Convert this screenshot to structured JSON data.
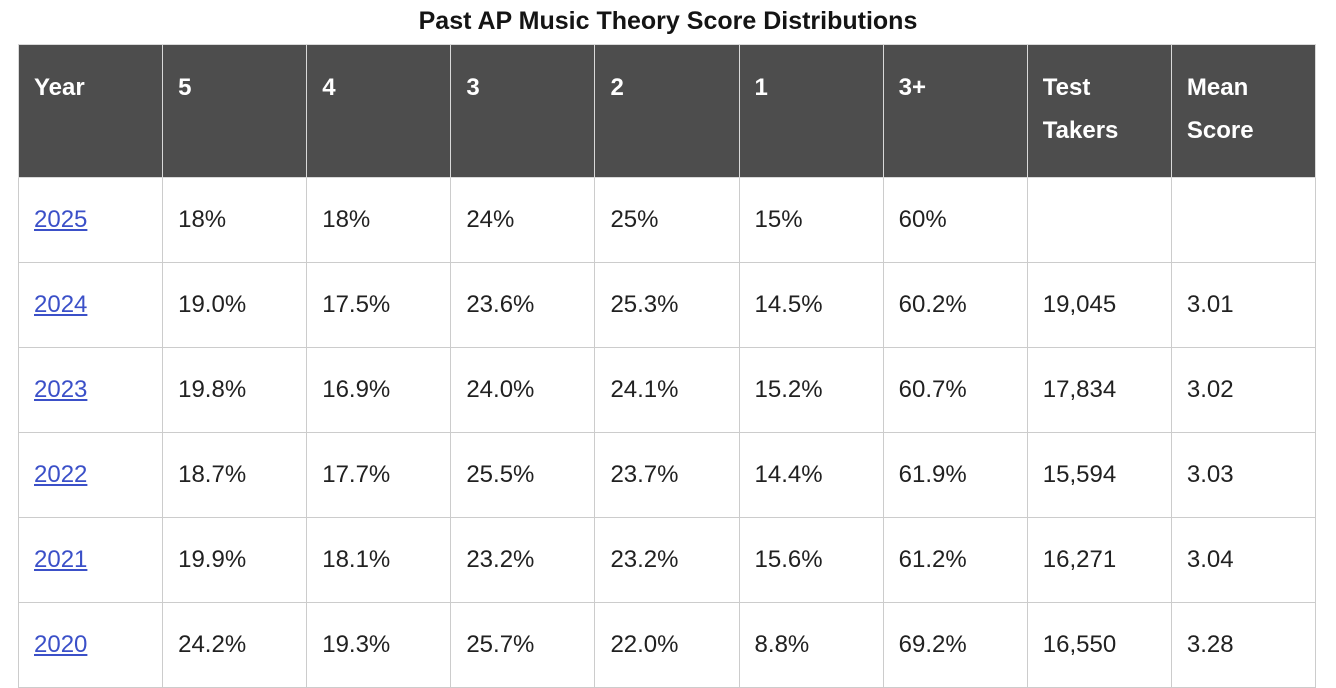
{
  "title": "Past AP Music Theory Score Distributions",
  "colors": {
    "header_bg": "#4d4d4d",
    "header_text": "#ffffff",
    "link": "#3b50c8",
    "grid_line": "#cccccc",
    "body_text": "#212121"
  },
  "table": {
    "columns": [
      "Year",
      "5",
      "4",
      "3",
      "2",
      "1",
      "3+",
      "Test Takers",
      "Mean Score"
    ],
    "rows": [
      {
        "year": "2025",
        "values": [
          "18%",
          "18%",
          "24%",
          "25%",
          "15%",
          "60%",
          "",
          ""
        ]
      },
      {
        "year": "2024",
        "values": [
          "19.0%",
          "17.5%",
          "23.6%",
          "25.3%",
          "14.5%",
          "60.2%",
          "19,045",
          "3.01"
        ]
      },
      {
        "year": "2023",
        "values": [
          "19.8%",
          "16.9%",
          "24.0%",
          "24.1%",
          "15.2%",
          "60.7%",
          "17,834",
          "3.02"
        ]
      },
      {
        "year": "2022",
        "values": [
          "18.7%",
          "17.7%",
          "25.5%",
          "23.7%",
          "14.4%",
          "61.9%",
          "15,594",
          "3.03"
        ]
      },
      {
        "year": "2021",
        "values": [
          "19.9%",
          "18.1%",
          "23.2%",
          "23.2%",
          "15.6%",
          "61.2%",
          "16,271",
          "3.04"
        ]
      },
      {
        "year": "2020",
        "values": [
          "24.2%",
          "19.3%",
          "25.7%",
          "22.0%",
          "8.8%",
          "69.2%",
          "16,550",
          "3.28"
        ]
      }
    ]
  }
}
